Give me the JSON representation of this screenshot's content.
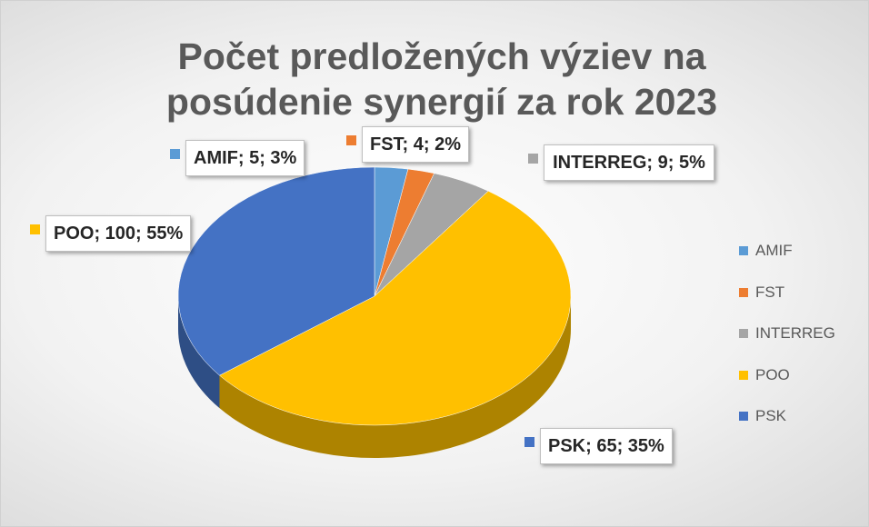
{
  "chart_data": {
    "type": "pie",
    "title": "Počet predložených výziev na posúdenie synergií za rok 2023",
    "categories": [
      "AMIF",
      "FST",
      "INTERREG",
      "POO",
      "PSK"
    ],
    "values": [
      5,
      4,
      9,
      100,
      65
    ],
    "value_labels": [
      "AMIF; 5; 3%",
      "FST; 4; 2%",
      "INTERREG; 9; 5%",
      "POO; 100; 55%",
      "PSK; 65; 35%"
    ],
    "colors": [
      "#5b9bd5",
      "#ed7d31",
      "#a5a5a5",
      "#ffc000",
      "#4472c4"
    ],
    "legend": "right"
  }
}
